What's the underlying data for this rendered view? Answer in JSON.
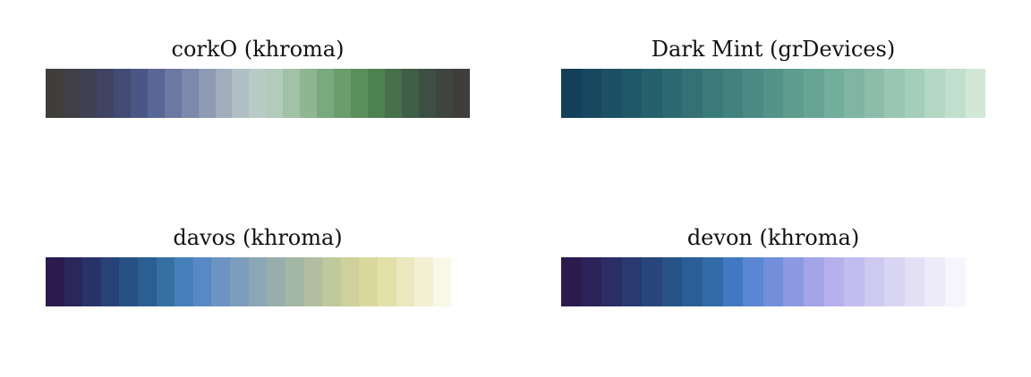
{
  "chart_data": [
    {
      "type": "colormap",
      "title": "corkO (khroma)",
      "colors": [
        "#3f3e3a",
        "#3f3f45",
        "#3f4152",
        "#404462",
        "#434b74",
        "#4a5786",
        "#596796",
        "#6a78a2",
        "#7d89ab",
        "#8f9bb4",
        "#a2adbd",
        "#b1bec4",
        "#b8cbc6",
        "#b2cbbb",
        "#a2c2a7",
        "#8fb692",
        "#7ba97e",
        "#6a9c6c",
        "#5b8f5c",
        "#4e8150",
        "#46704a",
        "#3f5e46",
        "#3d4f44",
        "#3e443f",
        "#3f3e3a"
      ]
    },
    {
      "type": "colormap",
      "title": "Dark Mint (grDevices)",
      "colors": [
        "#123f5a",
        "#17475f",
        "#1c5064",
        "#215868",
        "#26606c",
        "#2c6971",
        "#337175",
        "#3a7a79",
        "#42827e",
        "#4b8b83",
        "#549389",
        "#5e9c8e",
        "#68a494",
        "#73ad9b",
        "#7fb5a2",
        "#8bbdaa",
        "#98c6b2",
        "#a5ceba",
        "#b3d7c3",
        "#c1dfcc",
        "#d0e8d5"
      ]
    },
    {
      "type": "colormap",
      "title": "davos (khroma)",
      "colors": [
        "#2c1a4c",
        "#2a275b",
        "#283469",
        "#274277",
        "#275184",
        "#2b5f92",
        "#3670a3",
        "#4580bd",
        "#5989c4",
        "#6c94c1",
        "#7c9dbb",
        "#8ba6b4",
        "#98aeac",
        "#a4b6a4",
        "#b1bea0",
        "#c0c89d",
        "#cfd09b",
        "#dbd89d",
        "#e4e0aa",
        "#ebe8bd",
        "#f1f0d2",
        "#f8f8e8",
        "#fefefe"
      ]
    },
    {
      "type": "colormap",
      "title": "devon (khroma)",
      "colors": [
        "#2c1a4c",
        "#2b2358",
        "#2a2e64",
        "#293a70",
        "#28467c",
        "#275387",
        "#2a5f95",
        "#326ba7",
        "#4079c2",
        "#5a86d4",
        "#738fdb",
        "#8b9ae2",
        "#a3a5e8",
        "#b6b1ec",
        "#c2bdef",
        "#cec9f1",
        "#d9d5f4",
        "#e3e0f6",
        "#edebf9",
        "#f6f5fc",
        "#fefefe"
      ]
    }
  ]
}
